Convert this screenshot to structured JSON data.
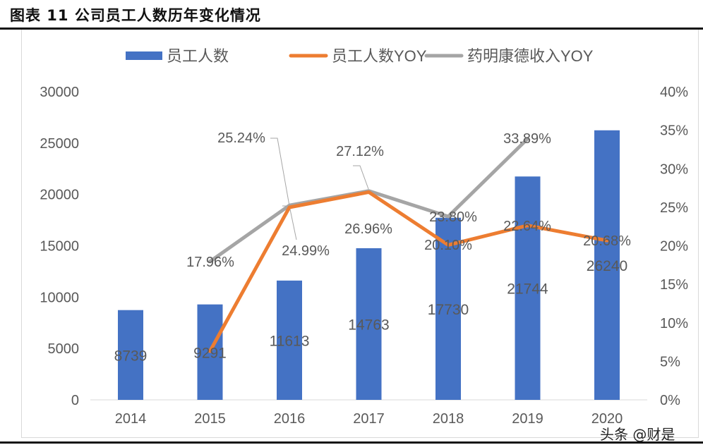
{
  "title": "图表 11 公司员工人数历年变化情况",
  "watermark": "头条 @财是",
  "chart_data": {
    "type": "bar+line",
    "categories": [
      "2014",
      "2015",
      "2016",
      "2017",
      "2018",
      "2019",
      "2020"
    ],
    "y_left": {
      "lim": [
        0,
        30000
      ],
      "ticks": [
        "0",
        "5000",
        "10000",
        "15000",
        "20000",
        "25000",
        "30000"
      ]
    },
    "y_right": {
      "lim": [
        0,
        40
      ],
      "ticks": [
        "0%",
        "5%",
        "10%",
        "15%",
        "20%",
        "25%",
        "30%",
        "35%",
        "40%"
      ]
    },
    "legend_position": "top",
    "grid": false,
    "series": [
      {
        "name": "员工人数",
        "type": "bar",
        "axis": "left",
        "color": "#4472C4",
        "values": [
          8739,
          9291,
          11613,
          14763,
          17730,
          21744,
          26240
        ],
        "labels": [
          "8739",
          "9291",
          "11613",
          "14763",
          "17730",
          "21744",
          "26240"
        ]
      },
      {
        "name": "员工人数YOY",
        "type": "line",
        "axis": "right",
        "color": "#ED7D31",
        "values": [
          null,
          6.32,
          24.99,
          26.96,
          20.1,
          22.64,
          20.68
        ],
        "labels": [
          null,
          null,
          "24.99%",
          "26.96%",
          "20.10%",
          "22.64%",
          "20.68%"
        ]
      },
      {
        "name": "药明康德收入YOY",
        "type": "line",
        "axis": "right",
        "color": "#A5A5A5",
        "values": [
          null,
          17.96,
          25.24,
          27.12,
          23.8,
          33.89,
          null
        ],
        "labels": [
          null,
          "17.96%",
          "25.24%",
          "27.12%",
          "23.80%",
          "33.89%",
          null
        ]
      }
    ]
  }
}
